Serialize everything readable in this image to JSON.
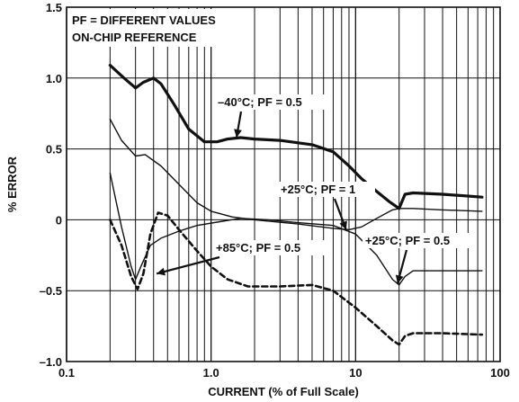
{
  "chart_data": {
    "type": "line",
    "x_scale": "log",
    "xlim": [
      0.1,
      100
    ],
    "ylim": [
      -1.0,
      1.5
    ],
    "xlabel": "CURRENT (% of Full Scale)",
    "ylabel": "% ERROR",
    "x_ticks": [
      {
        "value": 0.1,
        "label": "0.1"
      },
      {
        "value": 1,
        "label": "1.0"
      },
      {
        "value": 10,
        "label": "10"
      },
      {
        "value": 100,
        "label": "100"
      }
    ],
    "y_ticks": [
      {
        "value": 1.5,
        "label": "1.5"
      },
      {
        "value": 1.0,
        "label": "1.0"
      },
      {
        "value": 0.5,
        "label": "0.5"
      },
      {
        "value": 0,
        "label": "0"
      },
      {
        "value": -0.5,
        "label": "–0.5"
      },
      {
        "value": -1.0,
        "label": "–1.0"
      }
    ],
    "grid": {
      "vertical": true,
      "horizontal": true
    },
    "legend_box": [
      "PF = DIFFERENT VALUES",
      "ON-CHIP REFERENCE"
    ],
    "series": [
      {
        "name": "–40°C; PF = 0.5",
        "style": "thick",
        "points": [
          [
            0.2,
            1.09
          ],
          [
            0.25,
            1.0
          ],
          [
            0.3,
            0.93
          ],
          [
            0.34,
            0.97
          ],
          [
            0.4,
            1.0
          ],
          [
            0.45,
            0.96
          ],
          [
            0.55,
            0.82
          ],
          [
            0.7,
            0.64
          ],
          [
            0.9,
            0.55
          ],
          [
            1.1,
            0.55
          ],
          [
            1.3,
            0.57
          ],
          [
            1.6,
            0.58
          ],
          [
            2.0,
            0.57
          ],
          [
            3.0,
            0.56
          ],
          [
            5.0,
            0.53
          ],
          [
            7.0,
            0.48
          ],
          [
            9.0,
            0.38
          ],
          [
            11,
            0.29
          ],
          [
            14,
            0.2
          ],
          [
            17,
            0.13
          ],
          [
            20,
            0.08
          ],
          [
            22,
            0.18
          ],
          [
            25,
            0.19
          ],
          [
            40,
            0.18
          ],
          [
            75,
            0.16
          ]
        ]
      },
      {
        "name": "+25°C; PF = 1",
        "style": "thin",
        "points": [
          [
            0.2,
            0.71
          ],
          [
            0.24,
            0.56
          ],
          [
            0.3,
            0.45
          ],
          [
            0.35,
            0.46
          ],
          [
            0.45,
            0.38
          ],
          [
            0.6,
            0.25
          ],
          [
            0.8,
            0.12
          ],
          [
            1.0,
            0.06
          ],
          [
            1.4,
            0.02
          ],
          [
            2.0,
            0.0
          ],
          [
            4.0,
            -0.03
          ],
          [
            7.0,
            -0.06
          ],
          [
            9.0,
            -0.07
          ],
          [
            11,
            -0.05
          ],
          [
            14,
            0.01
          ],
          [
            18,
            0.07
          ],
          [
            20,
            0.08
          ],
          [
            25,
            0.08
          ],
          [
            40,
            0.07
          ],
          [
            75,
            0.06
          ]
        ]
      },
      {
        "name": "+25°C; PF = 0.5",
        "style": "thin",
        "points": [
          [
            0.2,
            0.33
          ],
          [
            0.24,
            -0.05
          ],
          [
            0.28,
            -0.33
          ],
          [
            0.3,
            -0.42
          ],
          [
            0.33,
            -0.32
          ],
          [
            0.38,
            -0.18
          ],
          [
            0.45,
            -0.13
          ],
          [
            0.6,
            -0.08
          ],
          [
            0.8,
            -0.04
          ],
          [
            1.2,
            -0.01
          ],
          [
            1.6,
            0.01
          ],
          [
            2.5,
            0.0
          ],
          [
            4.0,
            -0.02
          ],
          [
            7.0,
            -0.04
          ],
          [
            10,
            -0.1
          ],
          [
            14,
            -0.25
          ],
          [
            18,
            -0.42
          ],
          [
            20,
            -0.46
          ],
          [
            22,
            -0.4
          ],
          [
            25,
            -0.36
          ],
          [
            40,
            -0.36
          ],
          [
            75,
            -0.36
          ]
        ]
      },
      {
        "name": "+85°C; PF = 0.5",
        "style": "dashed",
        "points": [
          [
            0.2,
            0.0
          ],
          [
            0.24,
            -0.18
          ],
          [
            0.28,
            -0.4
          ],
          [
            0.31,
            -0.49
          ],
          [
            0.34,
            -0.38
          ],
          [
            0.38,
            -0.1
          ],
          [
            0.43,
            0.05
          ],
          [
            0.5,
            0.03
          ],
          [
            0.6,
            -0.07
          ],
          [
            0.8,
            -0.22
          ],
          [
            1.0,
            -0.33
          ],
          [
            1.3,
            -0.42
          ],
          [
            1.8,
            -0.47
          ],
          [
            3.0,
            -0.47
          ],
          [
            5.0,
            -0.46
          ],
          [
            7.0,
            -0.5
          ],
          [
            10,
            -0.62
          ],
          [
            14,
            -0.75
          ],
          [
            18,
            -0.85
          ],
          [
            20,
            -0.88
          ],
          [
            22,
            -0.82
          ],
          [
            25,
            -0.8
          ],
          [
            40,
            -0.8
          ],
          [
            75,
            -0.81
          ]
        ]
      }
    ],
    "annotations": [
      {
        "text": "–40°C; PF = 0.5",
        "series": 0
      },
      {
        "text": "+25°C; PF = 1",
        "series": 1
      },
      {
        "text": "+85°C; PF = 0.5",
        "series": 3
      },
      {
        "text": "+25°C; PF = 0.5",
        "series": 2
      }
    ]
  }
}
